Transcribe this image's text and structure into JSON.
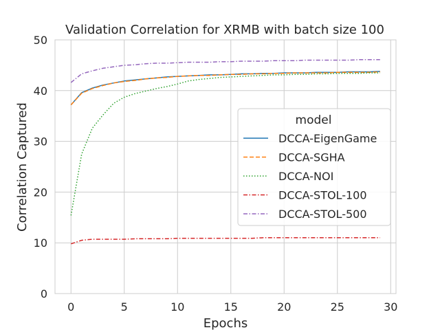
{
  "chart_data": {
    "type": "line",
    "title": "Validation Correlation for XRMB with batch size 100",
    "xlabel": "Epochs",
    "ylabel": "Correlation Captured",
    "xlim": [
      -1.5,
      30.5
    ],
    "ylim": [
      0,
      50
    ],
    "xticks": [
      0,
      5,
      10,
      15,
      20,
      25,
      30
    ],
    "yticks": [
      0,
      10,
      20,
      30,
      40,
      50
    ],
    "grid": true,
    "legend": {
      "title": "model",
      "placement": "center-right"
    },
    "x": [
      0,
      1,
      2,
      3,
      4,
      5,
      6,
      7,
      8,
      9,
      10,
      11,
      12,
      13,
      14,
      15,
      16,
      17,
      18,
      19,
      20,
      21,
      22,
      23,
      24,
      25,
      26,
      27,
      28,
      29
    ],
    "series": [
      {
        "name": "DCCA-EigenGame",
        "color": "#1f77b4",
        "dash": "solid",
        "values": [
          37.2,
          39.6,
          40.5,
          41.1,
          41.5,
          41.9,
          42.1,
          42.3,
          42.5,
          42.7,
          42.8,
          42.9,
          43.0,
          43.1,
          43.1,
          43.2,
          43.3,
          43.3,
          43.4,
          43.4,
          43.5,
          43.5,
          43.5,
          43.6,
          43.6,
          43.6,
          43.7,
          43.7,
          43.7,
          43.8
        ]
      },
      {
        "name": "DCCA-SGHA",
        "color": "#ff7f0e",
        "dash": "dashed",
        "values": [
          37.2,
          39.5,
          40.4,
          41.0,
          41.5,
          41.8,
          42.0,
          42.3,
          42.5,
          42.6,
          42.8,
          42.9,
          43.0,
          43.0,
          43.1,
          43.2,
          43.2,
          43.3,
          43.3,
          43.4,
          43.4,
          43.5,
          43.5,
          43.5,
          43.5,
          43.6,
          43.6,
          43.6,
          43.6,
          43.7
        ]
      },
      {
        "name": "DCCA-NOI",
        "color": "#2ca02c",
        "dash": "dotted",
        "values": [
          15.4,
          27.5,
          32.6,
          35.2,
          37.5,
          38.7,
          39.4,
          39.9,
          40.4,
          40.8,
          41.3,
          41.9,
          42.2,
          42.4,
          42.6,
          42.7,
          42.8,
          42.9,
          43.0,
          43.1,
          43.1,
          43.2,
          43.2,
          43.3,
          43.3,
          43.4,
          43.4,
          43.4,
          43.5,
          43.5
        ]
      },
      {
        "name": "DCCA-STOL-100",
        "color": "#d62728",
        "dash": "dashdot",
        "values": [
          9.8,
          10.5,
          10.7,
          10.7,
          10.7,
          10.7,
          10.8,
          10.8,
          10.8,
          10.8,
          10.9,
          10.9,
          10.9,
          10.9,
          10.9,
          10.9,
          10.9,
          10.9,
          11.0,
          11.0,
          11.0,
          11.0,
          11.0,
          11.0,
          11.0,
          11.0,
          11.0,
          11.0,
          11.0,
          11.0
        ]
      },
      {
        "name": "DCCA-STOL-500",
        "color": "#9467bd",
        "dash": "dashdot",
        "values": [
          41.6,
          43.3,
          43.9,
          44.4,
          44.7,
          45.0,
          45.1,
          45.3,
          45.4,
          45.4,
          45.5,
          45.6,
          45.6,
          45.6,
          45.7,
          45.7,
          45.8,
          45.8,
          45.8,
          45.9,
          45.9,
          45.9,
          46.0,
          46.0,
          46.0,
          46.0,
          46.0,
          46.1,
          46.1,
          46.1
        ]
      }
    ]
  }
}
